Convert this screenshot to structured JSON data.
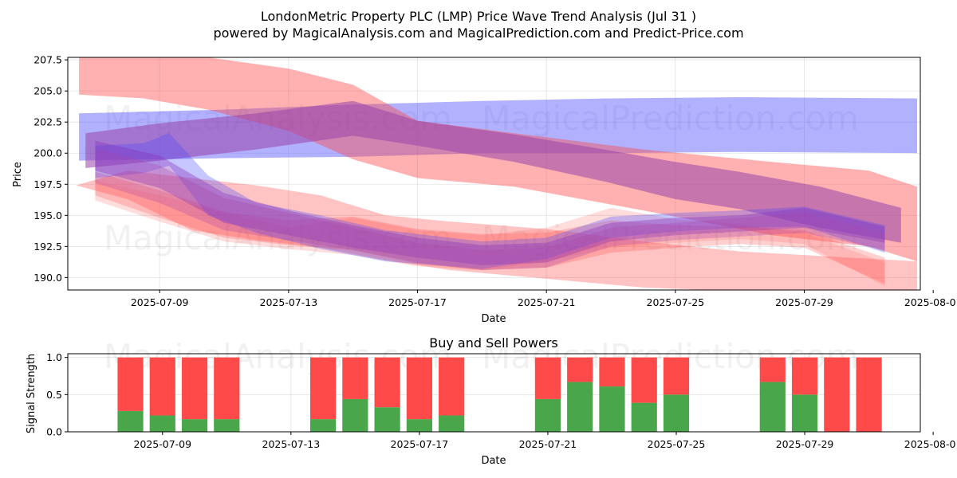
{
  "chart_data": [
    {
      "type": "area",
      "title": "LondonMetric Property PLC (LMP) Price Wave Trend Analysis (Jul 31 )",
      "subtitle": "powered by MagicalAnalysis.com and MagicalPrediction.com and Predict-Price.com",
      "xlabel": "Date",
      "ylabel": "Price",
      "ylim": [
        189.0,
        207.7
      ],
      "yticks": [
        190.0,
        192.5,
        195.0,
        197.5,
        200.0,
        202.5,
        205.0,
        207.5
      ],
      "ytick_labels": [
        "190.0",
        "192.5",
        "195.0",
        "197.5",
        "200.0",
        "202.5",
        "205.0",
        "207.5"
      ],
      "xlim": [
        -0.85,
        25.6
      ],
      "xticks": [
        2,
        6,
        10,
        14,
        18,
        22,
        26
      ],
      "xtick_labels": [
        "2025-07-09",
        "2025-07-13",
        "2025-07-17",
        "2025-07-21",
        "2025-07-25",
        "2025-07-29",
        "2025-08-01"
      ],
      "grid": true,
      "watermarks": [
        "MagicalAnalysis.com",
        "MagicalPrediction.com",
        "MagicalAnalysis.com",
        "MagicalPrediction.com"
      ],
      "bands": [
        {
          "name": "blue-long",
          "color": "#4444ff",
          "opacity": 0.42,
          "x": [
            -0.5,
            25.5
          ],
          "upper": [
            203.2,
            204.4
          ],
          "lower": [
            199.4,
            200.0
          ],
          "points": [
            [
              -0.5,
              203.2,
              199.4
            ],
            [
              4,
              203.5,
              199.6
            ],
            [
              8,
              203.9,
              199.7
            ],
            [
              12,
              204.2,
              200.0
            ],
            [
              16,
              204.4,
              200.0
            ],
            [
              20,
              204.5,
              200.1
            ],
            [
              25.5,
              204.4,
              200.0
            ]
          ]
        },
        {
          "name": "red-long",
          "color": "#ff4444",
          "opacity": 0.42,
          "points": [
            [
              -0.5,
              207.7,
              204.7
            ],
            [
              1.5,
              207.7,
              204.4
            ],
            [
              3.5,
              207.7,
              203.5
            ],
            [
              6,
              206.8,
              201.8
            ],
            [
              8,
              205.5,
              199.5
            ],
            [
              10,
              202.6,
              198.0
            ],
            [
              13,
              201.6,
              197.3
            ],
            [
              17,
              200.3,
              195.4
            ],
            [
              21,
              199.3,
              193.4
            ],
            [
              24,
              198.6,
              192.5
            ],
            [
              25.5,
              197.3,
              191.3
            ]
          ]
        },
        {
          "name": "purple-long",
          "color": "#9944aa",
          "opacity": 0.55,
          "points": [
            [
              -0.3,
              201.6,
              198.8
            ],
            [
              2,
              202.4,
              199.4
            ],
            [
              5,
              203.2,
              200.3
            ],
            [
              8,
              204.2,
              201.4
            ],
            [
              10,
              202.6,
              200.6
            ],
            [
              13,
              201.5,
              199.3
            ],
            [
              16,
              200.2,
              197.6
            ],
            [
              18,
              199.3,
              196.3
            ],
            [
              20,
              198.5,
              195.5
            ],
            [
              22.5,
              197.3,
              194.0
            ],
            [
              25,
              195.6,
              192.8
            ]
          ]
        },
        {
          "name": "red-mid-1",
          "color": "#ff4444",
          "opacity": 0.32,
          "points": [
            [
              -0.6,
              197.4,
              197.4
            ],
            [
              1,
              198.6,
              196.3
            ],
            [
              3,
              198.0,
              193.8
            ],
            [
              5,
              197.4,
              193.0
            ],
            [
              7,
              196.6,
              192.4
            ],
            [
              9,
              195.0,
              191.4
            ],
            [
              11,
              194.5,
              190.6
            ],
            [
              14,
              193.9,
              189.9
            ],
            [
              17,
              192.9,
              189.2
            ],
            [
              20,
              192.1,
              188.9
            ],
            [
              25.5,
              191.3,
              188.9
            ]
          ]
        },
        {
          "name": "red-mid-2",
          "color": "#ff4444",
          "opacity": 0.25,
          "points": [
            [
              0,
              198.5,
              196.6
            ],
            [
              2,
              197.0,
              194.8
            ],
            [
              4,
              195.3,
              193.2
            ],
            [
              6,
              194.6,
              192.6
            ],
            [
              8,
              194.9,
              192.2
            ],
            [
              10,
              193.9,
              191.1
            ],
            [
              12,
              193.5,
              190.6
            ],
            [
              14,
              193.6,
              190.8
            ],
            [
              16,
              194.6,
              192.0
            ],
            [
              18,
              194.2,
              192.4
            ],
            [
              20,
              194.1,
              192.7
            ],
            [
              22,
              193.8,
              192.4
            ],
            [
              24.5,
              191.6,
              189.5
            ]
          ]
        },
        {
          "name": "red-mid-3",
          "color": "#ff6666",
          "opacity": 0.22,
          "points": [
            [
              0,
              197.8,
              196.2
            ],
            [
              2,
              196.6,
              194.5
            ],
            [
              4,
              195.2,
              192.9
            ],
            [
              6,
              194.0,
              192.3
            ],
            [
              8,
              194.8,
              191.8
            ],
            [
              10,
              193.8,
              190.9
            ],
            [
              12,
              193.4,
              190.6
            ],
            [
              14,
              194.0,
              191.3
            ],
            [
              16,
              195.6,
              192.4
            ],
            [
              18,
              194.7,
              192.8
            ],
            [
              20,
              194.3,
              193.1
            ],
            [
              22,
              193.6,
              192.7
            ],
            [
              24.5,
              191.2,
              189.3
            ]
          ]
        },
        {
          "name": "blue-mid-1",
          "color": "#4444ff",
          "opacity": 0.3,
          "points": [
            [
              0,
              200.6,
              198.0
            ],
            [
              1.5,
              200.8,
              198.4
            ],
            [
              2.3,
              201.6,
              199.0
            ],
            [
              3.5,
              198.2,
              195.0
            ],
            [
              5,
              196.0,
              193.6
            ],
            [
              7,
              195.0,
              192.3
            ],
            [
              9,
              193.8,
              191.3
            ],
            [
              12,
              192.9,
              190.7
            ],
            [
              14,
              193.2,
              191.5
            ],
            [
              16,
              194.9,
              193.2
            ],
            [
              18,
              195.2,
              193.7
            ],
            [
              20,
              195.4,
              194.0
            ],
            [
              22,
              195.7,
              194.1
            ],
            [
              24.5,
              194.2,
              192.0
            ]
          ]
        },
        {
          "name": "purple-mid-1",
          "color": "#8833bb",
          "opacity": 0.38,
          "points": [
            [
              0,
              201.0,
              198.6
            ],
            [
              2,
              199.8,
              197.2
            ],
            [
              4,
              196.8,
              194.4
            ],
            [
              6,
              195.4,
              193.4
            ],
            [
              8,
              194.2,
              192.4
            ],
            [
              10,
              193.2,
              191.6
            ],
            [
              12,
              192.6,
              191.0
            ],
            [
              14,
              192.8,
              191.2
            ],
            [
              16,
              194.4,
              192.9
            ],
            [
              18,
              194.8,
              193.4
            ],
            [
              20,
              195.0,
              193.7
            ],
            [
              22,
              195.6,
              194.0
            ],
            [
              24.5,
              194.1,
              192.8
            ]
          ]
        },
        {
          "name": "purple-mid-2",
          "color": "#aa44aa",
          "opacity": 0.3,
          "points": [
            [
              0,
              200.4,
              197.6
            ],
            [
              2,
              199.0,
              196.0
            ],
            [
              4,
              196.4,
              193.8
            ],
            [
              6,
              195.2,
              193.0
            ],
            [
              8,
              194.0,
              192.2
            ],
            [
              10,
              192.8,
              191.2
            ],
            [
              12,
              192.2,
              190.6
            ],
            [
              14,
              192.4,
              190.8
            ],
            [
              16,
              194.0,
              192.5
            ],
            [
              18,
              194.4,
              193.0
            ],
            [
              20,
              194.8,
              193.3
            ],
            [
              22,
              195.2,
              193.6
            ],
            [
              24.5,
              193.6,
              192.2
            ]
          ]
        }
      ]
    },
    {
      "type": "bar",
      "title": "Buy and Sell Powers",
      "xlabel": "Date",
      "ylabel": "Signal Strength",
      "ylim": [
        0.0,
        1.05
      ],
      "yticks": [
        0.0,
        0.5,
        1.0
      ],
      "ytick_labels": [
        "0.0",
        "0.5",
        "1.0"
      ],
      "xlim": [
        -0.95,
        25.6
      ],
      "xticks": [
        2,
        6,
        10,
        14,
        18,
        22,
        26
      ],
      "xtick_labels": [
        "2025-07-09",
        "2025-07-13",
        "2025-07-17",
        "2025-07-21",
        "2025-07-25",
        "2025-07-29",
        "2025-08-01"
      ],
      "grid": true,
      "watermarks": [
        "MagicalAnalysis.com",
        "MagicalPrediction.com"
      ],
      "buy_color": "#4aa64a",
      "sell_color": "#ff4a4a",
      "x": [
        1,
        2,
        3,
        4,
        7,
        8,
        9,
        10,
        11,
        14,
        15,
        16,
        17,
        18,
        21,
        22,
        23,
        24
      ],
      "series": [
        {
          "name": "Buy",
          "values": [
            0.28,
            0.22,
            0.17,
            0.17,
            0.17,
            0.44,
            0.33,
            0.17,
            0.22,
            0.44,
            0.67,
            0.61,
            0.39,
            0.5,
            0.67,
            0.5,
            0.0,
            0.0
          ]
        },
        {
          "name": "Sell",
          "values": [
            0.72,
            0.78,
            0.83,
            0.83,
            0.83,
            0.56,
            0.67,
            0.83,
            0.78,
            0.56,
            0.33,
            0.39,
            0.61,
            0.5,
            0.33,
            0.5,
            1.0,
            1.0
          ]
        }
      ]
    }
  ]
}
